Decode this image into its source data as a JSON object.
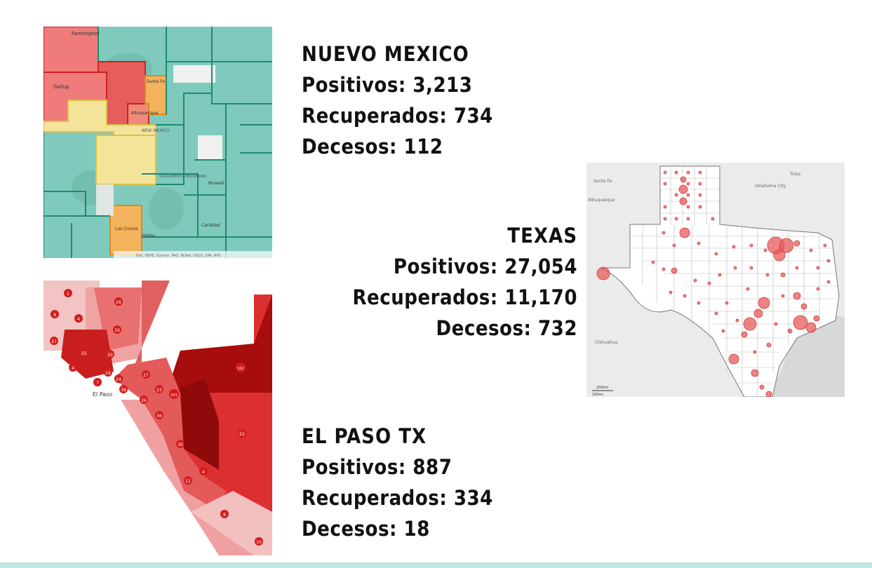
{
  "colors": {
    "nm_teal": "#7fcabd",
    "nm_red": "#ef7b7b",
    "nm_yellow": "#f4e49a",
    "nm_orange": "#f3b25c",
    "nm_border": "#1f8a6e",
    "tx_bubble": "#e85a5a",
    "ep_dark": "#a80d0d",
    "ep_mid": "#dc2f2f",
    "ep_light": "#f2b3b3",
    "footer": "#bfe8e4"
  },
  "panels": {
    "nuevo_mexico": {
      "title": "NUEVO MEXICO",
      "positivos_label": "Positivos:",
      "positivos": "3,213",
      "recuperados_label": "Recuperados:",
      "recuperados": "734",
      "decesos_label": "Decesos:",
      "decesos": "112"
    },
    "texas": {
      "title": "TEXAS",
      "positivos_label": "Positivos:",
      "positivos": "27,054",
      "recuperados_label": "Recuperados:",
      "recuperados": "11,170",
      "decesos_label": "Decesos:",
      "decesos": "732"
    },
    "el_paso": {
      "title": "EL PASO TX",
      "positivos_label": "Positivos:",
      "positivos": "887",
      "recuperados_label": "Recuperados:",
      "recuperados": "334",
      "decesos_label": "Decesos:",
      "decesos": "18"
    }
  },
  "maps": {
    "nm": {
      "labels": [
        "Farmington",
        "Gallup",
        "Santa Fe",
        "Albuquerque",
        "NEW MEXICO",
        "SACRAMENTO MOUNTAINS",
        "Roswell",
        "Carlsbad",
        "Las Cruces",
        "Hobbs"
      ],
      "credit": "Esri, HERE, Garmin, FAO, NOAA, USGS, EPA, NPS"
    },
    "tx": {
      "labels": [
        "Santa Fe",
        "Albuquerque",
        "Tulsa",
        "Oklahoma City",
        "Chihuahua"
      ],
      "scale": [
        "200km",
        "100mi"
      ]
    },
    "ep": {
      "city_label": "El Paso",
      "markers": [
        {
          "label": "1"
        },
        {
          "label": "26"
        },
        {
          "label": "8"
        },
        {
          "label": "4"
        },
        {
          "label": "33"
        },
        {
          "label": "27"
        },
        {
          "label": "55"
        },
        {
          "label": "20"
        },
        {
          "label": "4"
        },
        {
          "label": "7"
        },
        {
          "label": "19"
        },
        {
          "label": "24"
        },
        {
          "label": "38"
        },
        {
          "label": "27"
        },
        {
          "label": "23"
        },
        {
          "label": "101"
        },
        {
          "label": "102"
        },
        {
          "label": "26"
        },
        {
          "label": "36"
        },
        {
          "label": "52"
        },
        {
          "label": "30"
        },
        {
          "label": "4"
        },
        {
          "label": "12"
        },
        {
          "label": "8"
        },
        {
          "label": "10"
        }
      ]
    }
  }
}
